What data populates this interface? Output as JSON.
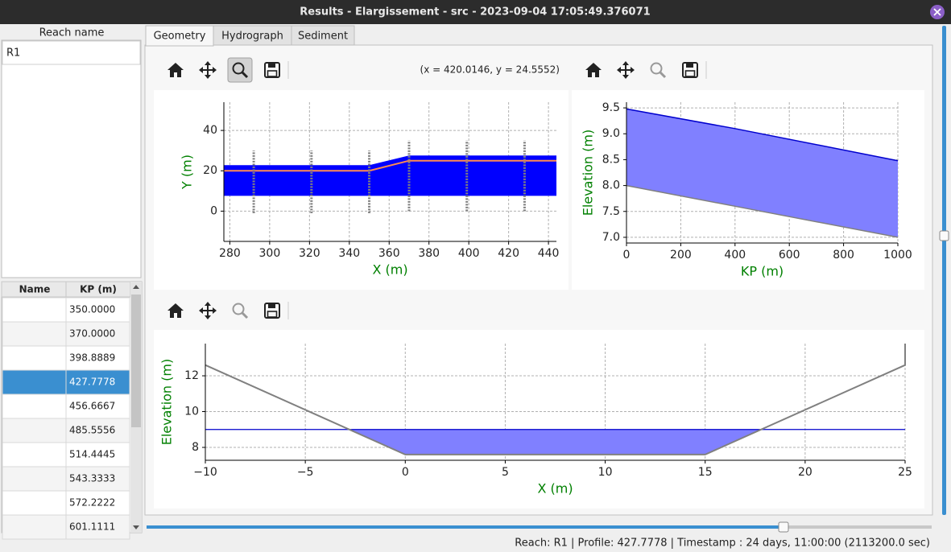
{
  "window": {
    "title": "Results - Elargissement - src - 2023-09-04 17:05:49.376071"
  },
  "reach_list": {
    "header": "Reach name",
    "items": [
      "R1"
    ]
  },
  "profile_table": {
    "columns": [
      "Name",
      "KP (m)"
    ],
    "kp": [
      "350.0000",
      "370.0000",
      "398.8889",
      "427.7778",
      "456.6667",
      "485.5556",
      "514.4445",
      "543.3333",
      "572.2222",
      "601.1111"
    ],
    "selected_row": 3
  },
  "tabs": [
    "Geometry",
    "Hydrograph",
    "Sediment"
  ],
  "cursor_readout": "(x = 420.0146,   y = 24.5552)",
  "status": "Reach: R1 | Profile: 427.7778 | Timestamp : 24 days, 11:00:00 (2113200.0 sec)",
  "chart_data": [
    {
      "type": "area",
      "x_label": "X (m)",
      "y_label": "Y (m)",
      "xlim": [
        277,
        444
      ],
      "ylim": [
        -15,
        54
      ],
      "xticks": [
        280,
        300,
        320,
        340,
        360,
        380,
        400,
        420,
        440
      ],
      "yticks": [
        0,
        20,
        40
      ],
      "grid": true,
      "x": [
        277,
        350,
        370,
        444
      ],
      "band": {
        "lower": [
          7.6,
          7.6,
          7.6,
          7.6
        ],
        "upper": [
          22.8,
          22.8,
          27.6,
          27.6
        ],
        "fill": "#0000ff"
      },
      "lines": [
        {
          "color": "#ff8c50",
          "values": [
            20,
            20,
            25,
            25
          ]
        }
      ],
      "profiles": {
        "x": [
          292,
          321,
          350,
          370,
          399,
          428
        ],
        "low": [
          -1,
          -1,
          -1,
          0,
          0,
          0
        ],
        "high": [
          30,
          30,
          30,
          35,
          35,
          35
        ],
        "color": "#808080"
      }
    },
    {
      "type": "area",
      "x_label": "KP (m)",
      "y_label": "Elevation (m)",
      "xlim": [
        0,
        1000
      ],
      "ylim": [
        6.89,
        9.61
      ],
      "xticks": [
        0,
        200,
        400,
        600,
        800,
        1000
      ],
      "yticks": [
        {
          "value": 7,
          "label": "7.0"
        },
        7.5,
        {
          "value": 8,
          "label": "8.0"
        },
        8.5,
        {
          "value": 9,
          "label": "9.0"
        },
        9.5
      ],
      "grid": true,
      "x": [
        0,
        400,
        1000
      ],
      "band": {
        "lower": [
          8.0,
          7.6,
          7.0
        ],
        "upper": [
          9.48,
          9.1,
          8.48
        ],
        "fill": "#8080ff",
        "lower_line": "#808080",
        "upper_line": "#0000cd"
      }
    },
    {
      "type": "section",
      "x_label": "X (m)",
      "y_label": "Elevation (m)",
      "xlim": [
        -10,
        25
      ],
      "ylim": [
        7.28,
        13.8
      ],
      "xticks": [
        {
          "value": -10,
          "label": "−10"
        },
        {
          "value": -5,
          "label": "−5"
        },
        0,
        5,
        10,
        15,
        20,
        25
      ],
      "yticks": [
        8,
        10,
        12
      ],
      "grid": true,
      "bed": {
        "x": [
          -10,
          0,
          15,
          25,
          25
        ],
        "values": [
          12.6,
          7.6,
          7.6,
          12.6,
          13.8
        ],
        "color": "#808080"
      },
      "water_level": 9.0,
      "water_color": "#0000cd",
      "fill": "#8080ff"
    }
  ]
}
